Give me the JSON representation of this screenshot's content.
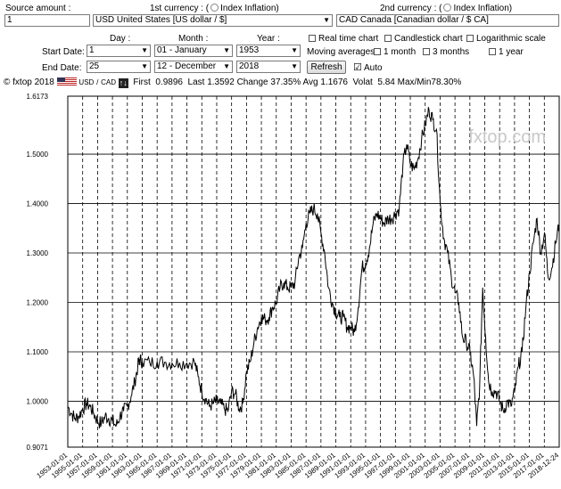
{
  "form": {
    "source_amount_label": "Source amount :",
    "amount_value": "1",
    "currency1_label": "1st currency : (",
    "currency1_index_label": "Index Inflation)",
    "currency1_value": "USD United States [US dollar / $]",
    "currency2_label": "2nd currency : (",
    "currency2_index_label": "Index Inflation)",
    "currency2_value": "CAD Canada [Canadian dollar / $ CA]",
    "day_label": "Day :",
    "month_label": "Month :",
    "year_label": "Year :",
    "start_date_label": "Start Date:",
    "end_date_label": "End Date:",
    "start_day": "1",
    "start_month": "01 - January",
    "start_year": "1953",
    "end_day": "25",
    "end_month": "12 - December",
    "end_year": "2018",
    "realtime_label": "Real time chart",
    "candlestick_label": "Candlestick chart",
    "log_label": "Logarithmic scale",
    "moving_avg_label": "Moving averages :",
    "ma1_label": "1 month",
    "ma3_label": "3 months",
    "ma12_label": "1 year",
    "refresh_label": "Refresh",
    "auto_label": "Auto"
  },
  "stats": {
    "copyright": "© fxtop 2018",
    "pair_from": "USD",
    "pair_sep": "/",
    "pair_to": "CAD",
    "first_label": "First",
    "first_value": "0.9896",
    "last_label": "Last",
    "last_value": "1.3592",
    "change_label": "Change",
    "change_value": "37.35%",
    "avg_label": "Avg",
    "avg_value": "1.1676",
    "volat_label": "Volat",
    "volat_value": "5.84",
    "maxmin_label": "Max/Min",
    "maxmin_value": "78.30%"
  },
  "colors": {
    "line": "#000000",
    "grid": "#000000",
    "watermark": "#c8c8c8"
  },
  "watermark": "fxtop.com",
  "chart_data": {
    "type": "line",
    "title": "",
    "xlabel": "",
    "ylabel": "",
    "ylim": [
      0.9071,
      1.6173
    ],
    "y_ticks": [
      "0.9071",
      "1.0000",
      "1.1000",
      "1.2000",
      "1.3000",
      "1.4000",
      "1.5000",
      "1.6173"
    ],
    "x_ticks": [
      "1953-01-01",
      "1955-01-01",
      "1957-01-01",
      "1959-01-01",
      "1961-01-01",
      "1963-01-01",
      "1965-01-01",
      "1967-01-01",
      "1969-01-01",
      "1971-01-01",
      "1973-01-01",
      "1975-01-01",
      "1977-01-01",
      "1979-01-01",
      "1981-01-01",
      "1983-01-01",
      "1985-01-01",
      "1987-01-01",
      "1989-01-01",
      "1991-01-01",
      "1993-01-01",
      "1995-01-01",
      "1997-01-01",
      "1999-01-01",
      "2001-01-01",
      "2003-01-01",
      "2005-01-01",
      "2007-01-01",
      "2009-01-01",
      "2011-01-01",
      "2013-01-01",
      "2015-01-01",
      "2017-01-01",
      "2018-12-24"
    ],
    "x_range": [
      1953.0,
      2018.98
    ],
    "series": [
      {
        "x": [
          1953.0,
          1953.5,
          1954.0,
          1954.5,
          1955.0,
          1955.5,
          1956.0,
          1956.5,
          1957.0,
          1957.5,
          1958.0,
          1958.5,
          1959.0,
          1959.5,
          1960.0,
          1960.5,
          1961.0,
          1961.5,
          1962.0,
          1962.4,
          1962.6,
          1963.0,
          1964.0,
          1965.0,
          1966.0,
          1967.0,
          1968.0,
          1969.0,
          1970.0,
          1970.5,
          1971.0,
          1971.5,
          1972.0,
          1972.5,
          1973.0,
          1973.5,
          1974.0,
          1974.5,
          1975.0,
          1975.5,
          1976.0,
          1976.5,
          1977.0,
          1977.5,
          1978.0,
          1978.5,
          1979.0,
          1979.5,
          1980.0,
          1980.5,
          1981.0,
          1981.5,
          1982.0,
          1982.5,
          1983.0,
          1983.5,
          1984.0,
          1984.5,
          1985.0,
          1985.5,
          1986.0,
          1986.5,
          1987.0,
          1987.5,
          1988.0,
          1988.5,
          1989.0,
          1989.5,
          1990.0,
          1990.5,
          1991.0,
          1991.5,
          1992.0,
          1992.5,
          1993.0,
          1993.5,
          1994.0,
          1994.5,
          1995.0,
          1995.5,
          1996.0,
          1996.5,
          1997.0,
          1997.5,
          1998.0,
          1998.5,
          1999.0,
          1999.5,
          2000.0,
          2000.5,
          2001.0,
          2001.5,
          2002.0,
          2002.5,
          2003.0,
          2003.5,
          2004.0,
          2004.5,
          2005.0,
          2005.5,
          2006.0,
          2006.5,
          2007.0,
          2007.5,
          2007.9,
          2008.3,
          2008.7,
          2009.1,
          2009.5,
          2010.0,
          2010.5,
          2011.0,
          2011.5,
          2012.0,
          2012.5,
          2013.0,
          2013.5,
          2014.0,
          2014.5,
          2015.0,
          2015.5,
          2016.0,
          2016.5,
          2017.0,
          2017.5,
          2018.0,
          2018.5,
          2018.98
        ],
        "y": [
          0.9896,
          0.975,
          0.965,
          0.97,
          0.985,
          0.995,
          0.99,
          0.975,
          0.96,
          0.955,
          0.97,
          0.965,
          0.96,
          0.95,
          0.97,
          0.98,
          0.99,
          1.01,
          1.04,
          1.07,
          1.085,
          1.08,
          1.078,
          1.08,
          1.079,
          1.077,
          1.078,
          1.077,
          1.08,
          1.05,
          1.02,
          1.005,
          0.99,
          0.995,
          1.0,
          0.995,
          0.985,
          0.98,
          1.02,
          1.015,
          0.985,
          0.995,
          1.06,
          1.08,
          1.12,
          1.15,
          1.17,
          1.165,
          1.17,
          1.19,
          1.2,
          1.23,
          1.24,
          1.23,
          1.23,
          1.24,
          1.29,
          1.31,
          1.36,
          1.38,
          1.39,
          1.38,
          1.34,
          1.3,
          1.23,
          1.2,
          1.18,
          1.17,
          1.17,
          1.15,
          1.15,
          1.14,
          1.19,
          1.27,
          1.28,
          1.31,
          1.36,
          1.38,
          1.37,
          1.36,
          1.37,
          1.37,
          1.38,
          1.39,
          1.48,
          1.52,
          1.48,
          1.47,
          1.49,
          1.53,
          1.56,
          1.59,
          1.57,
          1.55,
          1.4,
          1.33,
          1.3,
          1.25,
          1.22,
          1.2,
          1.13,
          1.12,
          1.1,
          1.05,
          0.95,
          1.03,
          1.23,
          1.13,
          1.04,
          1.02,
          1.02,
          1.0,
          0.98,
          1.0,
          0.99,
          1.02,
          1.07,
          1.1,
          1.19,
          1.26,
          1.32,
          1.37,
          1.3,
          1.34,
          1.25,
          1.27,
          1.32,
          1.3592
        ]
      }
    ]
  }
}
